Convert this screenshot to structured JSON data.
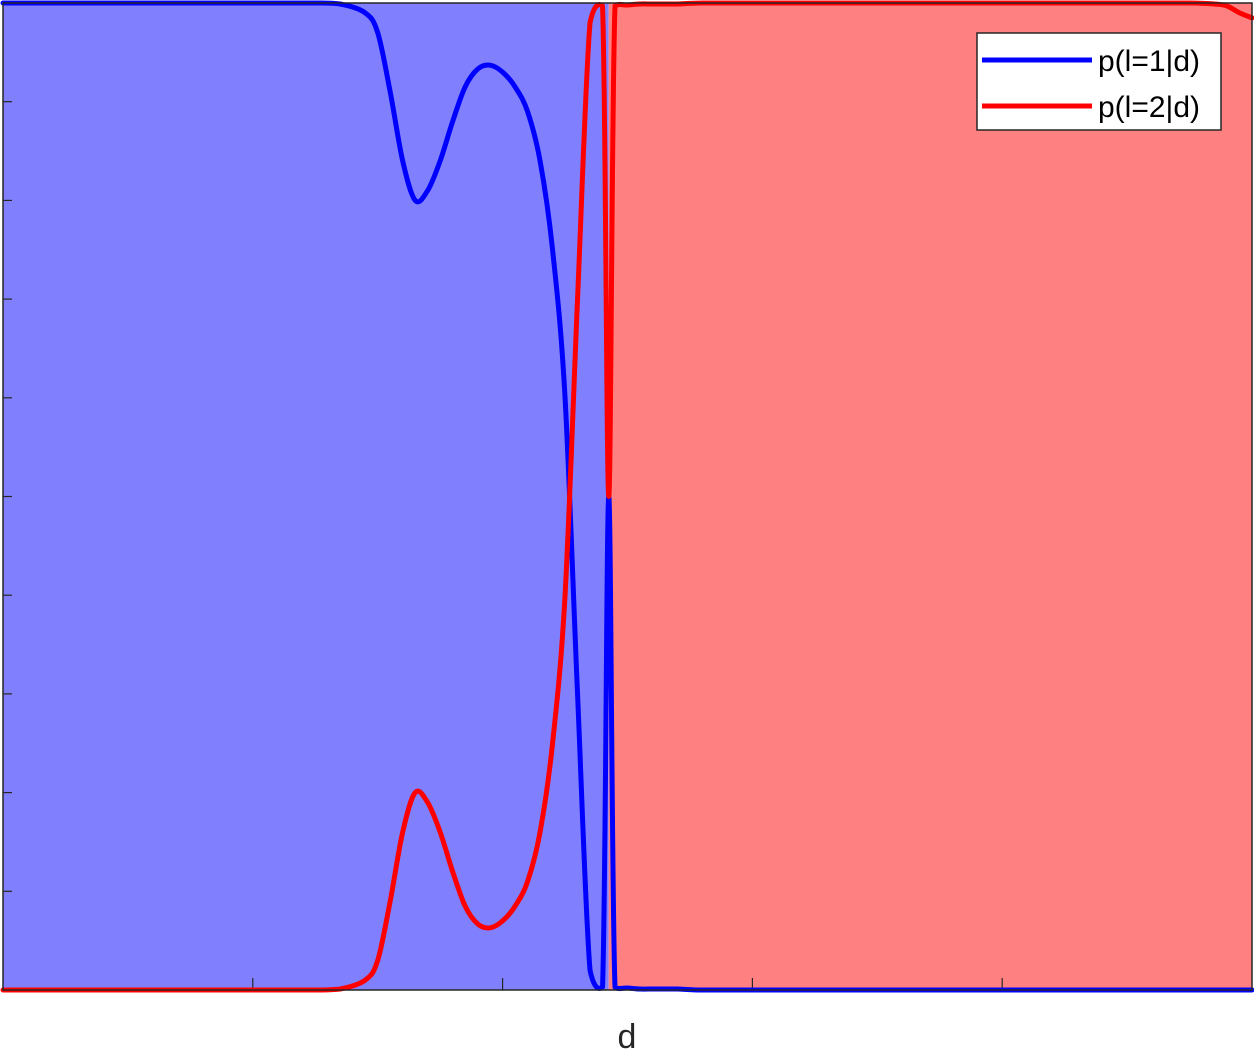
{
  "chart_data": {
    "type": "line",
    "xlabel": "d",
    "ylabel": "",
    "xlim": [
      0,
      1
    ],
    "ylim": [
      0,
      1
    ],
    "grid": false,
    "legend_position": "top-right",
    "decision_boundary": 0.485,
    "regions": [
      {
        "from": 0,
        "to": 0.485,
        "color": "#8080ff"
      },
      {
        "from": 0.485,
        "to": 1,
        "color": "#ff8080"
      }
    ],
    "x": [
      0,
      0.05,
      0.1,
      0.15,
      0.2,
      0.25,
      0.27,
      0.29,
      0.3,
      0.31,
      0.32,
      0.33,
      0.34,
      0.35,
      0.36,
      0.37,
      0.38,
      0.39,
      0.4,
      0.41,
      0.42,
      0.43,
      0.44,
      0.45,
      0.46,
      0.47,
      0.48,
      0.485,
      0.49,
      0.5,
      0.51,
      0.52,
      0.53,
      0.54,
      0.56,
      0.6,
      0.7,
      0.8,
      0.9,
      0.95,
      0.97,
      0.98,
      0.99,
      1.0
    ],
    "series": [
      {
        "name": "p(l=1|d)",
        "color": "#0000ff",
        "values": [
          1,
          1,
          1,
          1,
          1,
          1,
          0.999,
          0.99,
          0.97,
          0.91,
          0.84,
          0.8,
          0.81,
          0.84,
          0.88,
          0.915,
          0.933,
          0.937,
          0.93,
          0.915,
          0.89,
          0.84,
          0.75,
          0.6,
          0.3,
          0.02,
          0.003,
          0.5,
          0.003,
          0.002,
          0.001,
          0.001,
          0.001,
          0.001,
          0,
          0,
          0,
          0,
          0,
          0,
          0,
          0,
          0,
          0
        ]
      },
      {
        "name": "p(l=2|d)",
        "color": "#ff0000",
        "values": [
          0,
          0,
          0,
          0,
          0,
          0,
          0.001,
          0.01,
          0.03,
          0.09,
          0.16,
          0.2,
          0.19,
          0.16,
          0.12,
          0.085,
          0.067,
          0.063,
          0.07,
          0.085,
          0.11,
          0.16,
          0.25,
          0.4,
          0.7,
          0.98,
          0.997,
          0.5,
          0.997,
          0.998,
          0.999,
          0.999,
          0.999,
          0.999,
          1,
          1,
          1,
          1,
          1,
          1,
          0.999,
          0.997,
          0.99,
          0.985
        ]
      }
    ],
    "legend": [
      "p(l=1|d)",
      "p(l=2|d)"
    ]
  }
}
